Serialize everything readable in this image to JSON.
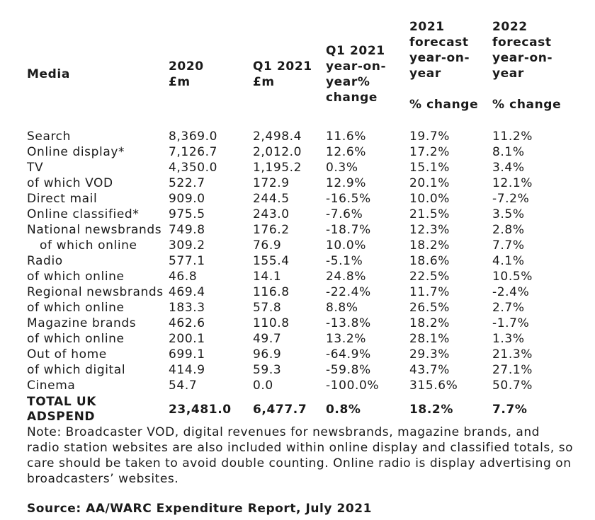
{
  "table": {
    "headers": {
      "media": [
        "Media"
      ],
      "y2020": [
        "2020",
        "£m"
      ],
      "q1_2021": [
        "Q1 2021",
        "£m"
      ],
      "q1_change": [
        "Q1 2021",
        "year-on-",
        "year%",
        "change"
      ],
      "f2021": [
        "2021",
        "forecast",
        "year-on-",
        "year",
        "",
        "% change"
      ],
      "f2022": [
        "2022",
        "forecast",
        "year-on-",
        "year",
        "",
        "% change"
      ]
    },
    "rows": [
      {
        "media": "Search",
        "v2020": "8,369.0",
        "q1": "2,498.4",
        "q1chg": "11.6%",
        "f2021": "19.7%",
        "f2022": "11.2%"
      },
      {
        "media": "Online display*",
        "v2020": "7,126.7",
        "q1": "2,012.0",
        "q1chg": "12.6%",
        "f2021": "17.2%",
        "f2022": "8.1%"
      },
      {
        "media": "TV",
        "v2020": "4,350.0",
        "q1": "1,195.2",
        "q1chg": "0.3%",
        "f2021": "15.1%",
        "f2022": "3.4%"
      },
      {
        "media": "of which VOD",
        "v2020": "522.7",
        "q1": "172.9",
        "q1chg": "12.9%",
        "f2021": "20.1%",
        "f2022": "12.1%"
      },
      {
        "media": "Direct mail",
        "v2020": "909.0",
        "q1": "244.5",
        "q1chg": "-16.5%",
        "f2021": "10.0%",
        "f2022": "-7.2%"
      },
      {
        "media": "Online classified*",
        "v2020": "975.5",
        "q1": "243.0",
        "q1chg": "-7.6%",
        "f2021": "21.5%",
        "f2022": "3.5%"
      },
      {
        "media": "National newsbrands",
        "v2020": "749.8",
        "q1": "176.2",
        "q1chg": "-18.7%",
        "f2021": "12.3%",
        "f2022": "2.8%"
      },
      {
        "media": "   of which online",
        "v2020": "309.2",
        "q1": "76.9",
        "q1chg": "10.0%",
        "f2021": "18.2%",
        "f2022": "7.7%"
      },
      {
        "media": "Radio",
        "v2020": "577.1",
        "q1": "155.4",
        "q1chg": "-5.1%",
        "f2021": "18.6%",
        "f2022": "4.1%"
      },
      {
        "media": "of which online",
        "v2020": "46.8",
        "q1": "14.1",
        "q1chg": "24.8%",
        "f2021": "22.5%",
        "f2022": "10.5%"
      },
      {
        "media": "Regional newsbrands",
        "v2020": "469.4",
        "q1": "116.8",
        "q1chg": "-22.4%",
        "f2021": "11.7%",
        "f2022": "-2.4%"
      },
      {
        "media": "of which online",
        "v2020": "183.3",
        "q1": "57.8",
        "q1chg": "8.8%",
        "f2021": "26.5%",
        "f2022": "2.7%"
      },
      {
        "media": "Magazine brands",
        "v2020": "462.6",
        "q1": "110.8",
        "q1chg": "-13.8%",
        "f2021": "18.2%",
        "f2022": "-1.7%"
      },
      {
        "media": "of which online",
        "v2020": "200.1",
        "q1": "49.7",
        "q1chg": "13.2%",
        "f2021": "28.1%",
        "f2022": "1.3%"
      },
      {
        "media": "Out of home",
        "v2020": "699.1",
        "q1": "96.9",
        "q1chg": "-64.9%",
        "f2021": "29.3%",
        "f2022": "21.3%"
      },
      {
        "media": "of which digital",
        "v2020": "414.9",
        "q1": "59.3",
        "q1chg": "-59.8%",
        "f2021": "43.7%",
        "f2022": "27.1%"
      },
      {
        "media": "Cinema",
        "v2020": "54.7",
        "q1": "0.0",
        "q1chg": "-100.0%",
        "f2021": "315.6%",
        "f2022": "50.7%"
      }
    ],
    "total": {
      "media": [
        "TOTAL UK",
        "ADSPEND"
      ],
      "v2020": "23,481.0",
      "q1": "6,477.7",
      "q1chg": "0.8%",
      "f2021": "18.2%",
      "f2022": "7.7%"
    }
  },
  "note": "Note: Broadcaster VOD, digital revenues for newsbrands, magazine brands, and radio station websites are also included within online display and classified totals, so care should be taken to avoid double counting. Online radio is display advertising on broadcasters’ websites.",
  "source": "Source: AA/WARC Expenditure Report, July 2021"
}
